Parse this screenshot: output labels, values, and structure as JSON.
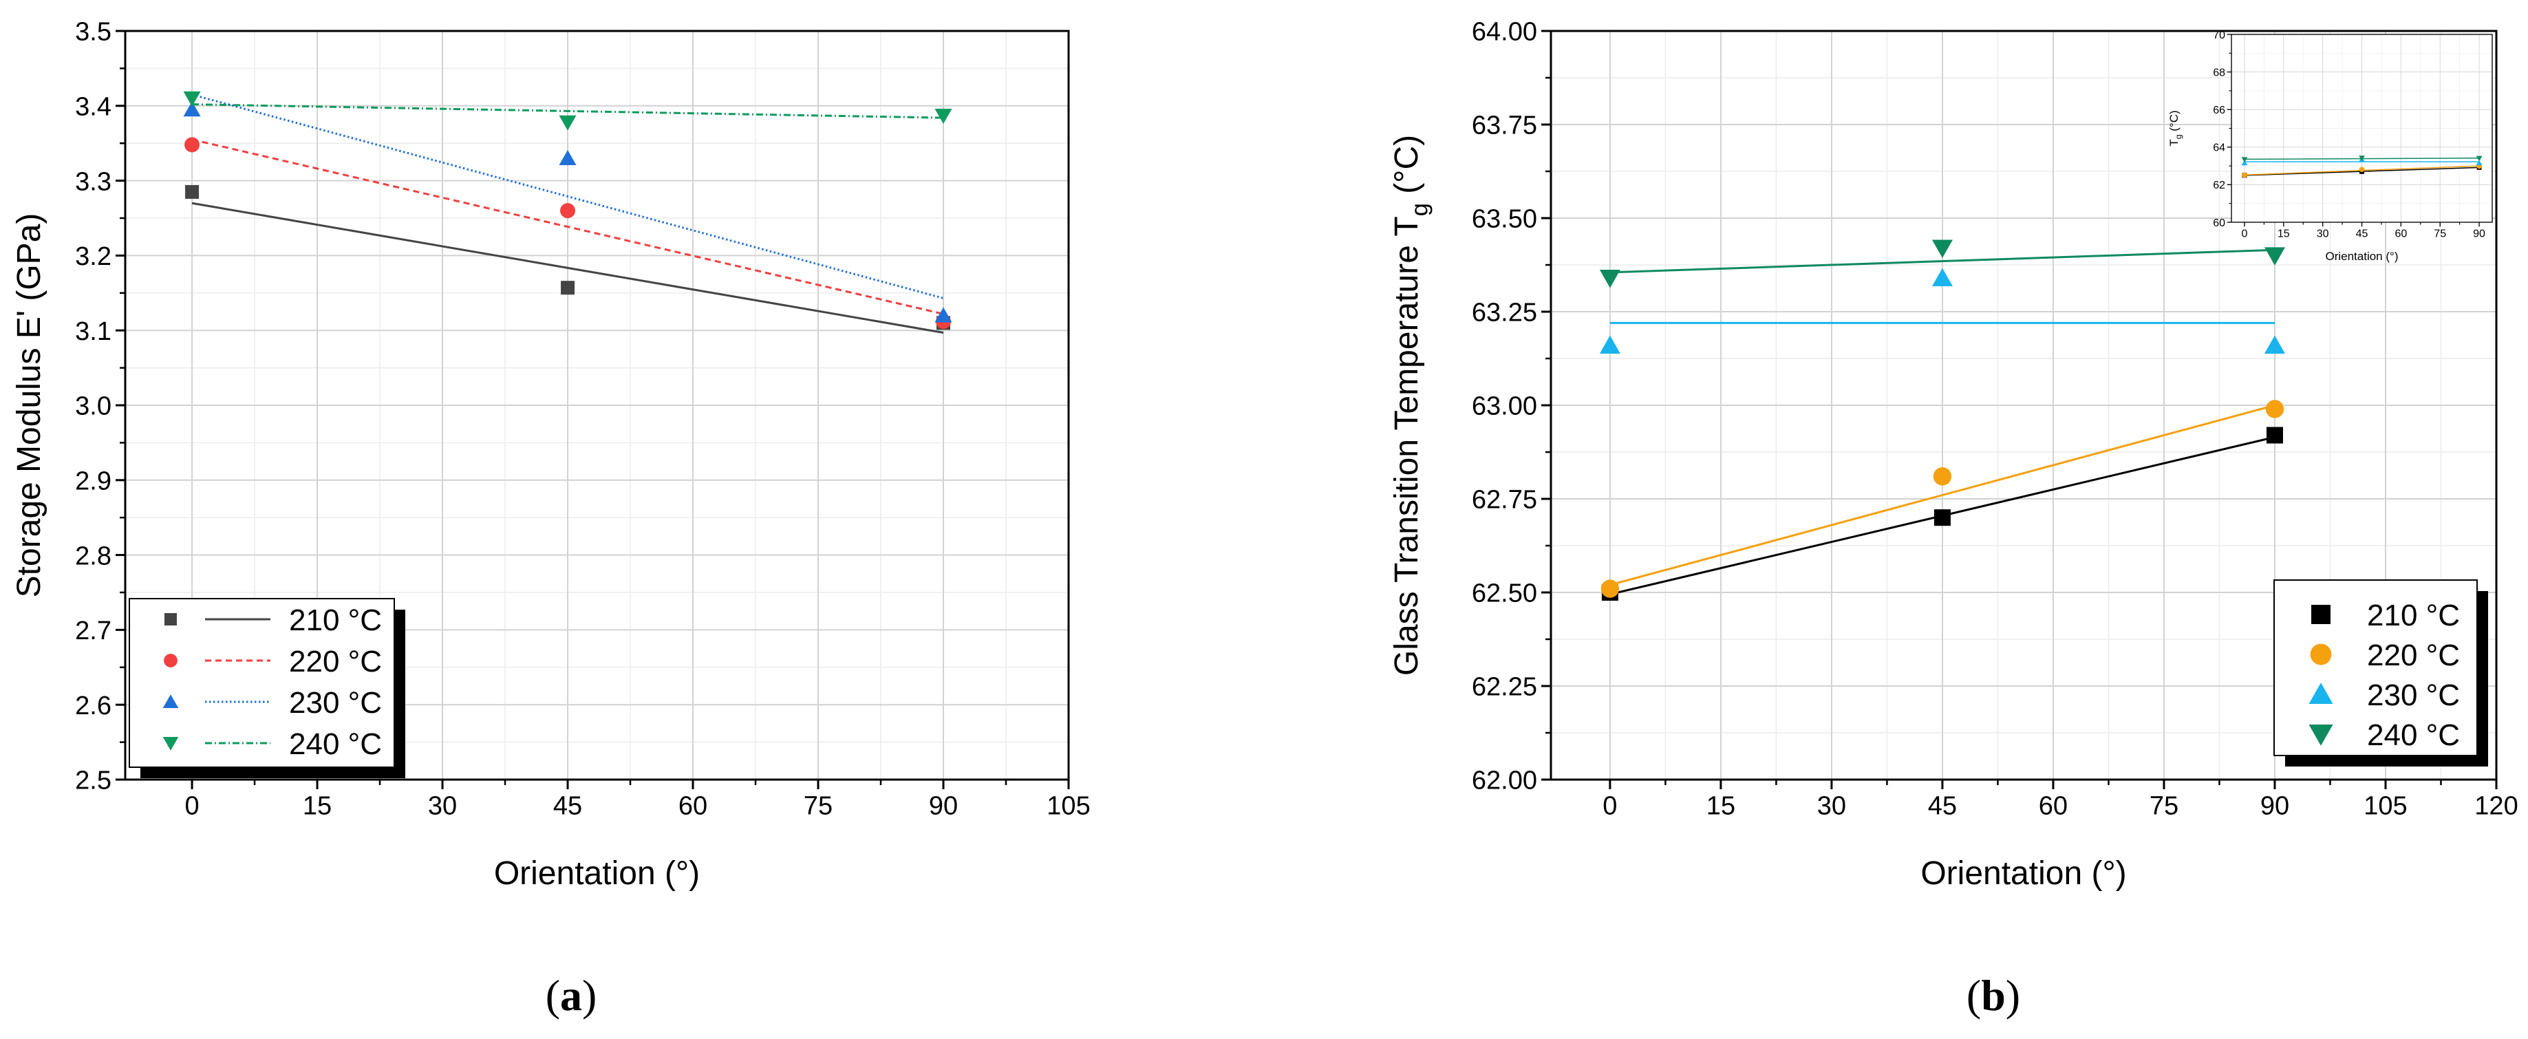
{
  "chart_data": [
    {
      "type": "scatter",
      "panel_label": "(a)",
      "panel_letter": "a",
      "xlabel": "Orientation (°)",
      "ylabel": "Storage Modulus E' (GPa)",
      "xlim": [
        -8,
        105
      ],
      "ylim": [
        2.5,
        3.5
      ],
      "xticks": [
        0,
        15,
        30,
        45,
        60,
        75,
        90,
        105
      ],
      "xtick_labels": [
        "0",
        "15",
        "30",
        "45",
        "60",
        "75",
        "90",
        "105"
      ],
      "yticks": [
        2.5,
        2.6,
        2.7,
        2.8,
        2.9,
        3.0,
        3.1,
        3.2,
        3.3,
        3.4,
        3.5
      ],
      "ytick_labels": [
        "2.5",
        "2.6",
        "2.7",
        "2.8",
        "2.9",
        "3.0",
        "3.1",
        "3.2",
        "3.3",
        "3.4",
        "3.5"
      ],
      "grid": true,
      "legend": "bottom-left",
      "series": [
        {
          "name": "210 °C",
          "color": "#444444",
          "marker": "square",
          "line": "solid",
          "x": [
            0,
            45,
            90
          ],
          "y": [
            3.285,
            3.157,
            3.11
          ],
          "fit": [
            [
              0,
              3.27
            ],
            [
              90,
              3.097
            ]
          ]
        },
        {
          "name": "220 °C",
          "color": "#f04040",
          "marker": "circle",
          "line": "dashed",
          "x": [
            0,
            45,
            90
          ],
          "y": [
            3.348,
            3.26,
            3.112
          ],
          "fit": [
            [
              0,
              3.355
            ],
            [
              90,
              3.122
            ]
          ]
        },
        {
          "name": "230 °C",
          "color": "#1f6fd6",
          "marker": "triangle-up",
          "line": "dotted",
          "x": [
            0,
            45,
            90
          ],
          "y": [
            3.395,
            3.33,
            3.12
          ],
          "fit": [
            [
              0,
              3.415
            ],
            [
              90,
              3.143
            ]
          ]
        },
        {
          "name": "240 °C",
          "color": "#0e9b5e",
          "marker": "triangle-down",
          "line": "dashdot",
          "x": [
            0,
            45,
            90
          ],
          "y": [
            3.41,
            3.378,
            3.387
          ],
          "fit": [
            [
              0,
              3.402
            ],
            [
              90,
              3.384
            ]
          ]
        }
      ]
    },
    {
      "type": "scatter",
      "panel_label": "(b)",
      "panel_letter": "b",
      "xlabel": "Orientation (°)",
      "ylabel": "Glass Transition Temperature T",
      "ylabel_sub": "g",
      "ylabel_unit": " (°C)",
      "xlim": [
        -8,
        120
      ],
      "ylim": [
        62.0,
        64.0
      ],
      "xticks": [
        0,
        15,
        30,
        45,
        60,
        75,
        90,
        105,
        120
      ],
      "xtick_labels": [
        "0",
        "15",
        "30",
        "45",
        "60",
        "75",
        "90",
        "105",
        "120"
      ],
      "yticks": [
        62.0,
        62.25,
        62.5,
        62.75,
        63.0,
        63.25,
        63.5,
        63.75,
        64.0
      ],
      "ytick_labels": [
        "62.00",
        "62.25",
        "62.50",
        "62.75",
        "63.00",
        "63.25",
        "63.50",
        "63.75",
        "64.00"
      ],
      "grid": true,
      "legend": "bottom-right",
      "series": [
        {
          "name": "210 °C",
          "color": "#000000",
          "marker": "square",
          "line": "solid",
          "x": [
            0,
            45,
            90
          ],
          "y": [
            62.5,
            62.7,
            62.92
          ],
          "fit": [
            [
              0,
              62.495
            ],
            [
              90,
              62.915
            ]
          ]
        },
        {
          "name": "220 °C",
          "color": "#f5a00f",
          "marker": "circle",
          "line": "solid",
          "x": [
            0,
            45,
            90
          ],
          "y": [
            62.51,
            62.81,
            62.99
          ],
          "fit": [
            [
              0,
              62.52
            ],
            [
              90,
              63.0
            ]
          ]
        },
        {
          "name": "230 °C",
          "color": "#19b4ee",
          "marker": "triangle-up",
          "line": "solid",
          "x": [
            0,
            45,
            90
          ],
          "y": [
            63.16,
            63.34,
            63.16
          ],
          "fit": [
            [
              0,
              63.22
            ],
            [
              90,
              63.22
            ]
          ]
        },
        {
          "name": "240 °C",
          "color": "#0e8a5f",
          "marker": "triangle-down",
          "line": "solid",
          "x": [
            0,
            45,
            90
          ],
          "y": [
            63.34,
            63.42,
            63.4
          ],
          "fit": [
            [
              0,
              63.355
            ],
            [
              90,
              63.415
            ]
          ]
        }
      ],
      "inset": {
        "type": "scatter",
        "xlabel": "Orientation (°)",
        "ylabel": "T",
        "ylabel_sub": "g",
        "ylabel_unit": " (°C)",
        "xlim": [
          -5,
          95
        ],
        "ylim": [
          60,
          70
        ],
        "xticks": [
          0,
          15,
          30,
          45,
          60,
          75,
          90
        ],
        "xtick_labels": [
          "0",
          "15",
          "30",
          "45",
          "60",
          "75",
          "90"
        ],
        "yticks": [
          60,
          62,
          64,
          66,
          68,
          70
        ],
        "ytick_labels": [
          "60",
          "62",
          "64",
          "66",
          "68",
          "70"
        ],
        "grid": true
      }
    }
  ]
}
